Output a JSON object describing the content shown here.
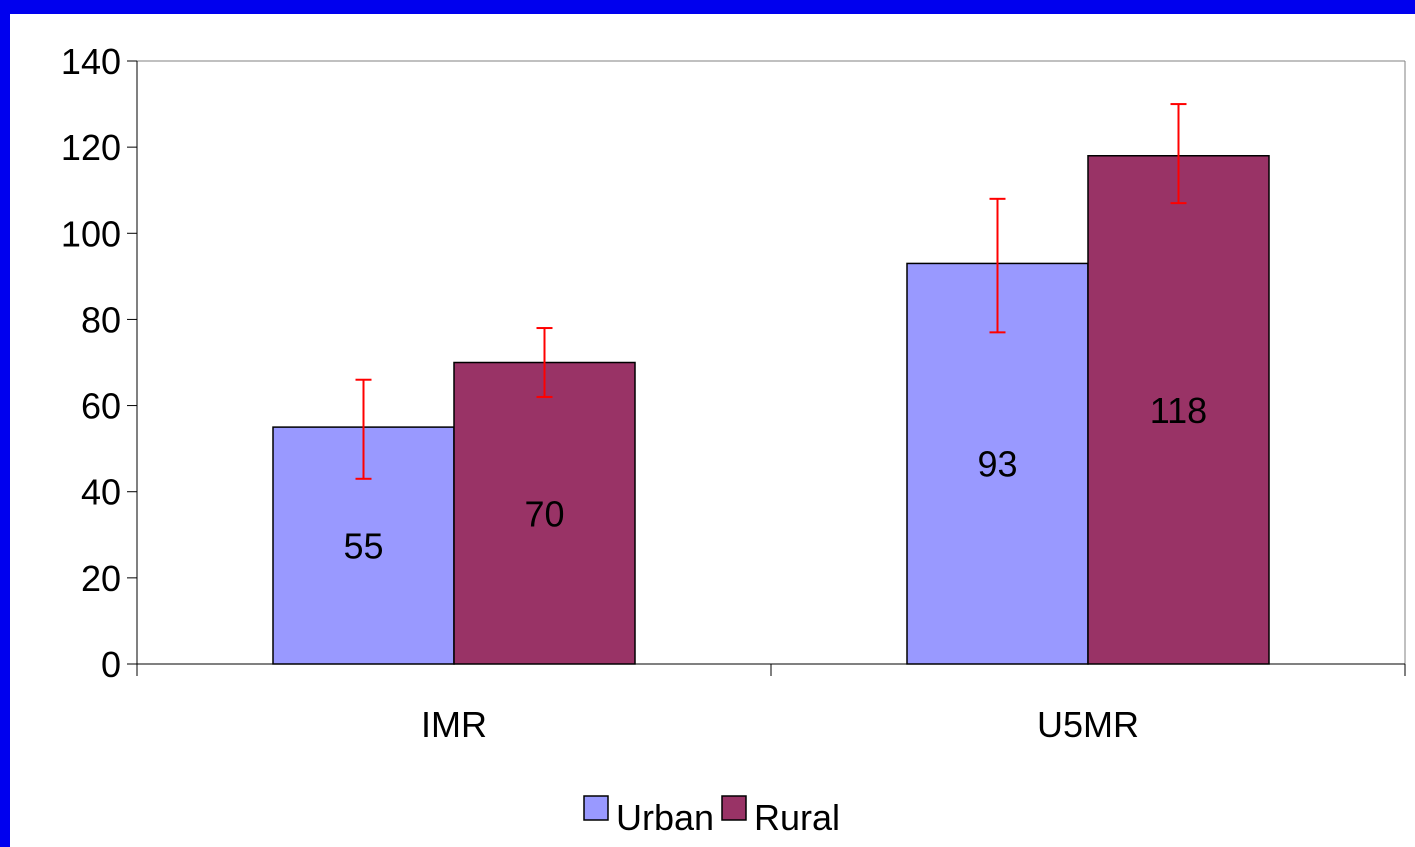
{
  "colors": {
    "background": "#0000ee",
    "plot_background": "#ffffff",
    "error_bar": "#ff0000",
    "axis": "#000000"
  },
  "chart_data": {
    "type": "bar",
    "categories": [
      "IMR",
      "U5MR"
    ],
    "series": [
      {
        "name": "Urban",
        "values": [
          55,
          93
        ],
        "color": "#9999ff",
        "error_low": [
          43,
          77
        ],
        "error_high": [
          66,
          108
        ]
      },
      {
        "name": "Rural",
        "values": [
          70,
          118
        ],
        "color": "#993366",
        "error_low": [
          62,
          107
        ],
        "error_high": [
          78,
          130
        ]
      }
    ],
    "data_labels": [
      [
        "55",
        "93"
      ],
      [
        "70",
        "118"
      ]
    ],
    "y_ticks": [
      0,
      20,
      40,
      60,
      80,
      100,
      120,
      140
    ],
    "ylim": [
      0,
      140
    ],
    "grid": false,
    "legend_position": "bottom",
    "title": "",
    "xlabel": "",
    "ylabel": ""
  }
}
